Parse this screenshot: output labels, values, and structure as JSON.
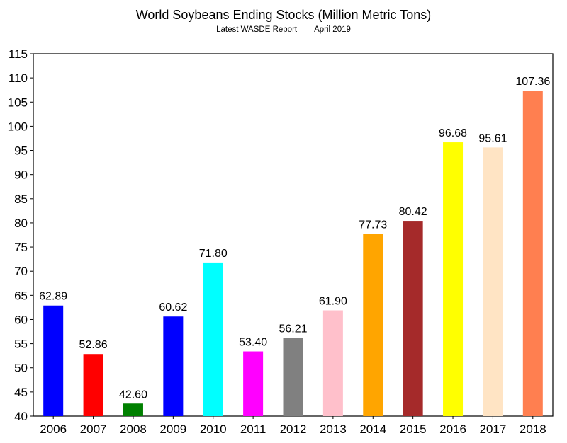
{
  "chart_data": {
    "type": "bar",
    "title": "World Soybeans Ending Stocks (Million Metric Tons)",
    "subtitle_left": "Latest WASDE Report",
    "subtitle_right": "April 2019",
    "xlabel": "",
    "ylabel": "",
    "ylim": [
      40,
      115
    ],
    "yticks": [
      40,
      45,
      50,
      55,
      60,
      65,
      70,
      75,
      80,
      85,
      90,
      95,
      100,
      105,
      110,
      115
    ],
    "grid": false,
    "categories": [
      "2006",
      "2007",
      "2008",
      "2009",
      "2010",
      "2011",
      "2012",
      "2013",
      "2014",
      "2015",
      "2016",
      "2017",
      "2018"
    ],
    "values": [
      62.89,
      52.86,
      42.6,
      60.62,
      71.8,
      53.4,
      56.21,
      61.9,
      77.73,
      80.42,
      96.68,
      95.61,
      107.36
    ],
    "value_labels": [
      "62.89",
      "52.86",
      "42.60",
      "60.62",
      "71.80",
      "53.40",
      "56.21",
      "61.90",
      "77.73",
      "80.42",
      "96.68",
      "95.61",
      "107.36"
    ],
    "colors": [
      "#0000ff",
      "#ff0000",
      "#008000",
      "#0000ff",
      "#00ffff",
      "#ff00ff",
      "#808080",
      "#ffc0cb",
      "#ffa500",
      "#a52a2a",
      "#ffff00",
      "#ffe4c4",
      "#ff7f50"
    ]
  }
}
